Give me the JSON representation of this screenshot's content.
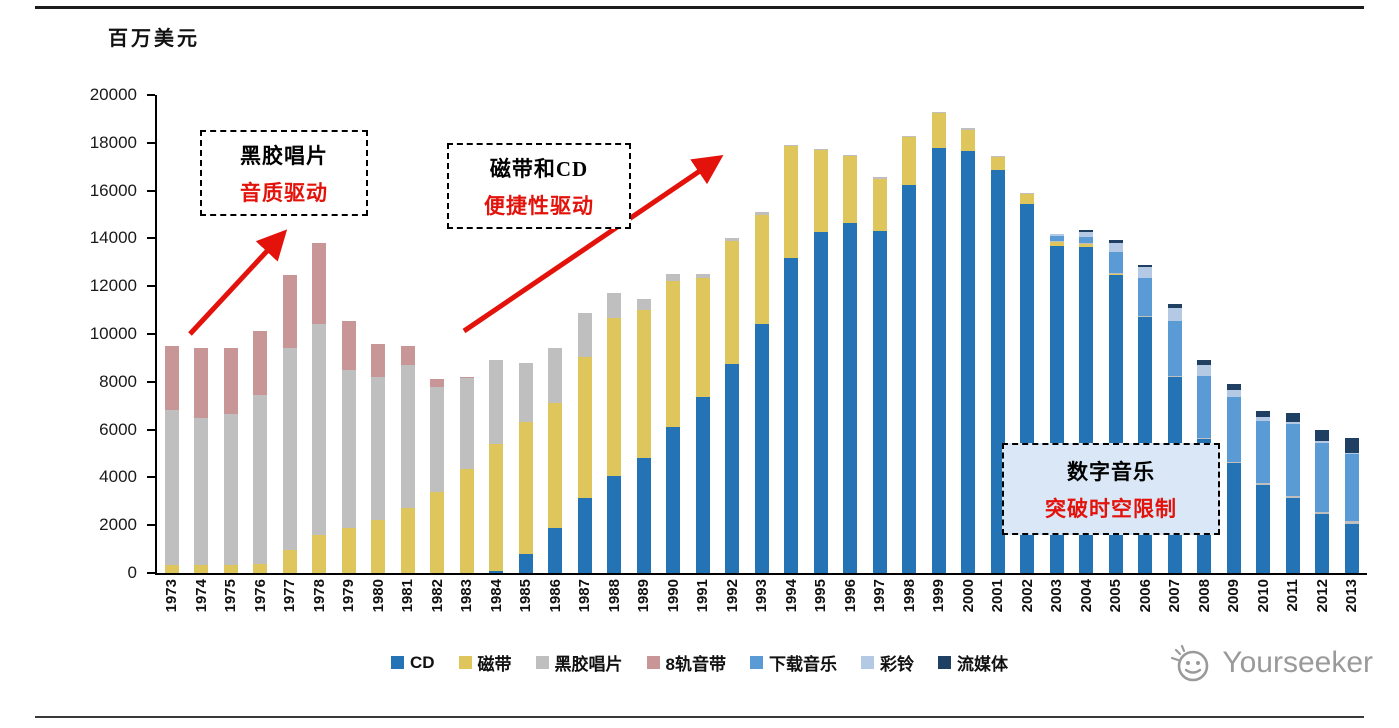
{
  "unit_label": "百万美元",
  "watermark": {
    "text": "Yourseeker"
  },
  "annotations": [
    {
      "line1": "黑胶唱片",
      "line2": "音质驱动"
    },
    {
      "line1": "磁带和CD",
      "line2": "便捷性驱动"
    },
    {
      "line1": "数字音乐",
      "line2": "突破时空限制"
    }
  ],
  "colors": {
    "annotation_highlight": "#E3120B",
    "arrow": "#E3120B",
    "axis": "#000000",
    "annotation3_bg": "#D9E7F6"
  },
  "chart_data": {
    "type": "bar",
    "stacked": true,
    "title": "",
    "xlabel": "",
    "ylabel": "百万美元",
    "ylim": [
      0,
      20000
    ],
    "yticks": [
      0,
      2000,
      4000,
      6000,
      8000,
      10000,
      12000,
      14000,
      16000,
      18000,
      20000
    ],
    "grid": false,
    "legend_position": "bottom",
    "categories": [
      "1973",
      "1974",
      "1975",
      "1976",
      "1977",
      "1978",
      "1979",
      "1980",
      "1981",
      "1982",
      "1983",
      "1984",
      "1985",
      "1986",
      "1987",
      "1988",
      "1989",
      "1990",
      "1991",
      "1992",
      "1993",
      "1994",
      "1995",
      "1996",
      "1997",
      "1998",
      "1999",
      "2000",
      "2001",
      "2002",
      "2003",
      "2004",
      "2005",
      "2006",
      "2007",
      "2008",
      "2009",
      "2010",
      "2011",
      "2012",
      "2013"
    ],
    "series": [
      {
        "name": "CD",
        "color": "#2473B5",
        "values": [
          0,
          0,
          0,
          0,
          0,
          0,
          0,
          0,
          0,
          0,
          0,
          100,
          800,
          1900,
          3150,
          4050,
          4800,
          6100,
          7350,
          8750,
          10400,
          13200,
          14250,
          14650,
          14300,
          16250,
          17800,
          17650,
          16850,
          15450,
          13700,
          13650,
          12450,
          10700,
          8200,
          5600,
          4600,
          3700,
          3150,
          2450,
          2050
        ]
      },
      {
        "name": "磁带",
        "color": "#DFC65C",
        "values": [
          350,
          350,
          350,
          380,
          950,
          1600,
          1900,
          2200,
          2700,
          3400,
          4350,
          5300,
          5500,
          5200,
          5900,
          6600,
          6200,
          6100,
          5000,
          5150,
          4600,
          4650,
          3450,
          2800,
          2200,
          2000,
          1450,
          900,
          550,
          400,
          150,
          100,
          50,
          0,
          0,
          0,
          0,
          0,
          0,
          0,
          0
        ]
      },
      {
        "name": "黑胶唱片",
        "color": "#BFBFBF",
        "values": [
          6450,
          6150,
          6300,
          7050,
          8450,
          8800,
          6600,
          6000,
          6000,
          4400,
          3800,
          3500,
          2500,
          2300,
          1850,
          1050,
          450,
          300,
          150,
          100,
          100,
          50,
          50,
          50,
          50,
          50,
          50,
          50,
          50,
          50,
          50,
          50,
          50,
          50,
          50,
          50,
          50,
          60,
          80,
          100,
          120
        ]
      },
      {
        "name": "8轨音带",
        "color": "#C89697",
        "values": [
          2700,
          2900,
          2750,
          2700,
          3050,
          3400,
          2050,
          1400,
          800,
          300,
          50,
          0,
          0,
          0,
          0,
          0,
          0,
          0,
          0,
          0,
          0,
          0,
          0,
          0,
          0,
          0,
          0,
          0,
          0,
          0,
          0,
          0,
          0,
          0,
          0,
          0,
          0,
          0,
          0,
          0,
          0
        ]
      },
      {
        "name": "下载音乐",
        "color": "#5B9BD5",
        "values": [
          0,
          0,
          0,
          0,
          0,
          0,
          0,
          0,
          0,
          0,
          0,
          0,
          0,
          0,
          0,
          0,
          0,
          0,
          0,
          0,
          0,
          0,
          0,
          0,
          0,
          0,
          0,
          0,
          0,
          0,
          200,
          250,
          900,
          1600,
          2300,
          2600,
          2700,
          2600,
          3000,
          2900,
          2800
        ]
      },
      {
        "name": "彩铃",
        "color": "#B4C9E4",
        "values": [
          0,
          0,
          0,
          0,
          0,
          0,
          0,
          0,
          0,
          0,
          0,
          0,
          0,
          0,
          0,
          0,
          0,
          0,
          0,
          0,
          0,
          0,
          0,
          0,
          0,
          0,
          0,
          0,
          0,
          0,
          100,
          200,
          350,
          450,
          550,
          450,
          300,
          150,
          100,
          80,
          50
        ]
      },
      {
        "name": "流媒体",
        "color": "#1F3F63",
        "values": [
          0,
          0,
          0,
          0,
          0,
          0,
          0,
          0,
          0,
          0,
          0,
          0,
          0,
          0,
          0,
          0,
          0,
          0,
          0,
          0,
          0,
          0,
          0,
          0,
          0,
          0,
          0,
          0,
          0,
          0,
          0,
          100,
          150,
          100,
          150,
          200,
          250,
          250,
          350,
          450,
          650
        ]
      }
    ]
  }
}
